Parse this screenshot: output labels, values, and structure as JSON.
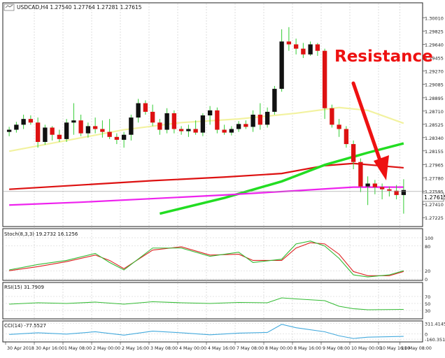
{
  "chart_data": {
    "type": "candlestick",
    "title": "USDCAD,H4 1.27540 1.27764 1.27281 1.27615",
    "annotation": "Resistance",
    "current_price_label": "1.27615",
    "main": {
      "ylim": [
        1.2712,
        1.302
      ],
      "yticks": [
        "1.30010",
        "1.29825",
        "1.29640",
        "1.29455",
        "1.29270",
        "1.29085",
        "1.28895",
        "1.28710",
        "1.28525",
        "1.28340",
        "1.28155",
        "1.27965",
        "1.27780",
        "1.27595",
        "1.27410",
        "1.27225"
      ],
      "ytick_values": [
        1.3001,
        1.29825,
        1.2964,
        1.29455,
        1.2927,
        1.29085,
        1.28895,
        1.2871,
        1.28525,
        1.2834,
        1.28155,
        1.27965,
        1.2778,
        1.27595,
        1.2741,
        1.27225
      ],
      "candles": [
        [
          1.2842,
          1.2849,
          1.2836,
          1.2845
        ],
        [
          1.2845,
          1.2856,
          1.2841,
          1.2852
        ],
        [
          1.2852,
          1.2866,
          1.2846,
          1.286
        ],
        [
          1.286,
          1.2865,
          1.2852,
          1.2855
        ],
        [
          1.2855,
          1.2862,
          1.282,
          1.2828
        ],
        [
          1.2828,
          1.2852,
          1.2824,
          1.2848
        ],
        [
          1.2848,
          1.285,
          1.283,
          1.2838
        ],
        [
          1.2838,
          1.2845,
          1.2828,
          1.2832
        ],
        [
          1.2832,
          1.286,
          1.2828,
          1.2855
        ],
        [
          1.2855,
          1.2882,
          1.2838,
          1.2858
        ],
        [
          1.2858,
          1.2866,
          1.2836,
          1.284
        ],
        [
          1.284,
          1.2855,
          1.2834,
          1.285
        ],
        [
          1.285,
          1.2862,
          1.284,
          1.2846
        ],
        [
          1.2846,
          1.2858,
          1.2834,
          1.2842
        ],
        [
          1.2842,
          1.286,
          1.2832,
          1.2835
        ],
        [
          1.2835,
          1.284,
          1.2825,
          1.2831
        ],
        [
          1.2831,
          1.2842,
          1.282,
          1.2838
        ],
        [
          1.2838,
          1.2866,
          1.283,
          1.2862
        ],
        [
          1.2862,
          1.2888,
          1.2855,
          1.2882
        ],
        [
          1.2882,
          1.2886,
          1.2866,
          1.287
        ],
        [
          1.287,
          1.288,
          1.285,
          1.2855
        ],
        [
          1.2855,
          1.286,
          1.2838,
          1.2845
        ],
        [
          1.2845,
          1.2875,
          1.284,
          1.2868
        ],
        [
          1.2868,
          1.2872,
          1.284,
          1.2846
        ],
        [
          1.2846,
          1.285,
          1.2838,
          1.2843
        ],
        [
          1.2843,
          1.2852,
          1.2835,
          1.2846
        ],
        [
          1.2846,
          1.2858,
          1.2838,
          1.2841
        ],
        [
          1.2841,
          1.2868,
          1.2836,
          1.2865
        ],
        [
          1.2865,
          1.2878,
          1.2852,
          1.2872
        ],
        [
          1.2872,
          1.2876,
          1.284,
          1.2845
        ],
        [
          1.2845,
          1.2852,
          1.2838,
          1.2841
        ],
        [
          1.2841,
          1.285,
          1.2837,
          1.2846
        ],
        [
          1.2846,
          1.2857,
          1.2842,
          1.2853
        ],
        [
          1.2853,
          1.2858,
          1.2846,
          1.2849
        ],
        [
          1.2849,
          1.2872,
          1.2842,
          1.2866
        ],
        [
          1.2866,
          1.2882,
          1.2845,
          1.2852
        ],
        [
          1.2852,
          1.2876,
          1.2848,
          1.287
        ],
        [
          1.287,
          1.2906,
          1.2866,
          1.2902
        ],
        [
          1.2902,
          1.2985,
          1.2898,
          1.2968
        ],
        [
          1.2968,
          1.2988,
          1.2955,
          1.2964
        ],
        [
          1.2964,
          1.2972,
          1.295,
          1.2958
        ],
        [
          1.2958,
          1.2966,
          1.2945,
          1.295
        ],
        [
          1.295,
          1.2968,
          1.2948,
          1.2964
        ],
        [
          1.2964,
          1.2966,
          1.2948,
          1.2955
        ],
        [
          1.2955,
          1.2958,
          1.286,
          1.2875
        ],
        [
          1.2875,
          1.288,
          1.2848,
          1.2852
        ],
        [
          1.2852,
          1.286,
          1.2835,
          1.2846
        ],
        [
          1.2846,
          1.285,
          1.282,
          1.2825
        ],
        [
          1.2825,
          1.283,
          1.279,
          1.28
        ],
        [
          1.28,
          1.2805,
          1.2758,
          1.2766
        ],
        [
          1.2766,
          1.278,
          1.274,
          1.277
        ],
        [
          1.277,
          1.2775,
          1.2755,
          1.2765
        ],
        [
          1.2765,
          1.277,
          1.2748,
          1.2762
        ],
        [
          1.2762,
          1.2766,
          1.2752,
          1.276
        ],
        [
          1.276,
          1.2768,
          1.2748,
          1.2754
        ],
        [
          1.2754,
          1.2776,
          1.2728,
          1.2761
        ]
      ],
      "moving_averages": [
        {
          "color": "#f2f2a0",
          "start": 1.2815,
          "end": 1.2854,
          "points": [
            [
              0,
              1.2815
            ],
            [
              8,
              1.283
            ],
            [
              16,
              1.2845
            ],
            [
              24,
              1.2855
            ],
            [
              32,
              1.286
            ],
            [
              40,
              1.2868
            ],
            [
              46,
              1.2876
            ],
            [
              50,
              1.2872
            ],
            [
              55,
              1.2854
            ]
          ]
        },
        {
          "color": "#dd1111",
          "start": 1.2762,
          "end": 1.2792,
          "points": [
            [
              0,
              1.2762
            ],
            [
              10,
              1.2768
            ],
            [
              20,
              1.2774
            ],
            [
              30,
              1.2779
            ],
            [
              38,
              1.2784
            ],
            [
              44,
              1.2795
            ],
            [
              48,
              1.2798
            ],
            [
              55,
              1.2792
            ]
          ]
        },
        {
          "color": "#22dd22",
          "start": 1.2728,
          "end": 1.2826,
          "points": [
            [
              21,
              1.2728
            ],
            [
              30,
              1.275
            ],
            [
              38,
              1.2773
            ],
            [
              44,
              1.2796
            ],
            [
              50,
              1.2813
            ],
            [
              55,
              1.2826
            ]
          ]
        },
        {
          "color": "#ee22ee",
          "start": 1.274,
          "end": 1.2765,
          "points": [
            [
              0,
              1.274
            ],
            [
              10,
              1.2744
            ],
            [
              20,
              1.2749
            ],
            [
              30,
              1.2754
            ],
            [
              40,
              1.276
            ],
            [
              48,
              1.2765
            ],
            [
              55,
              1.2765
            ]
          ]
        }
      ],
      "hline": 1.2759
    },
    "stoch": {
      "label": "Stoch(8,3,3) 19.2732 16.1256",
      "yticks": [
        "100",
        "80",
        "20",
        "0"
      ],
      "ytick_values": [
        100,
        80,
        20,
        0
      ],
      "main_line": [
        [
          0,
          22
        ],
        [
          4,
          35
        ],
        [
          8,
          45
        ],
        [
          12,
          62
        ],
        [
          14,
          40
        ],
        [
          16,
          22
        ],
        [
          20,
          75
        ],
        [
          24,
          75
        ],
        [
          28,
          55
        ],
        [
          32,
          65
        ],
        [
          34,
          40
        ],
        [
          38,
          48
        ],
        [
          40,
          85
        ],
        [
          42,
          92
        ],
        [
          44,
          80
        ],
        [
          46,
          50
        ],
        [
          48,
          10
        ],
        [
          50,
          5
        ],
        [
          53,
          10
        ],
        [
          55,
          20
        ]
      ],
      "signal_line": [
        [
          0,
          20
        ],
        [
          4,
          30
        ],
        [
          8,
          42
        ],
        [
          12,
          58
        ],
        [
          14,
          45
        ],
        [
          16,
          25
        ],
        [
          20,
          70
        ],
        [
          24,
          78
        ],
        [
          28,
          58
        ],
        [
          32,
          60
        ],
        [
          34,
          45
        ],
        [
          38,
          45
        ],
        [
          40,
          75
        ],
        [
          42,
          88
        ],
        [
          44,
          85
        ],
        [
          46,
          60
        ],
        [
          48,
          18
        ],
        [
          50,
          8
        ],
        [
          53,
          8
        ],
        [
          55,
          18
        ]
      ]
    },
    "rsi": {
      "label": "RSI(15) 31.7909",
      "yticks": [
        "70",
        "50",
        "30"
      ],
      "ytick_values": [
        70,
        50,
        30
      ],
      "line": [
        [
          0,
          48
        ],
        [
          4,
          52
        ],
        [
          8,
          50
        ],
        [
          12,
          54
        ],
        [
          16,
          48
        ],
        [
          20,
          55
        ],
        [
          24,
          52
        ],
        [
          28,
          50
        ],
        [
          32,
          53
        ],
        [
          36,
          52
        ],
        [
          38,
          66
        ],
        [
          40,
          63
        ],
        [
          44,
          58
        ],
        [
          46,
          42
        ],
        [
          48,
          35
        ],
        [
          50,
          32
        ],
        [
          55,
          33
        ]
      ]
    },
    "cci": {
      "label": "CCI(14) -77.5527",
      "yticks": [
        "311.4145",
        "0",
        "-160.3513"
      ],
      "ytick_values": [
        311.4145,
        0,
        -160.3513
      ],
      "line": [
        [
          0,
          -20
        ],
        [
          4,
          30
        ],
        [
          8,
          -10
        ],
        [
          12,
          60
        ],
        [
          16,
          -40
        ],
        [
          20,
          80
        ],
        [
          24,
          30
        ],
        [
          28,
          -30
        ],
        [
          32,
          20
        ],
        [
          36,
          40
        ],
        [
          38,
          280
        ],
        [
          40,
          180
        ],
        [
          44,
          60
        ],
        [
          46,
          -60
        ],
        [
          48,
          -140
        ],
        [
          50,
          -100
        ],
        [
          55,
          -77.5527
        ]
      ]
    },
    "x_ticks": [
      "30 Apr 2018",
      "30 Apr 16:00",
      "1 May 08:00",
      "2 May 00:00",
      "2 May 16:00",
      "3 May 08:00",
      "4 May 00:00",
      "4 May 16:00",
      "7 May 08:00",
      "8 May 00:00",
      "8 May 16:00",
      "9 May 08:00",
      "10 May 00:00",
      "10 May 16:00",
      "11 May 08:00"
    ],
    "x_tick_candle_index": [
      0,
      4,
      8,
      12,
      16,
      20,
      24,
      28,
      32,
      36,
      40,
      44,
      48,
      52,
      55
    ],
    "colors": {
      "bull_candle": "#111111",
      "bear_candle": "#dd1111",
      "wick": "#33cc33",
      "indicator_main": "#33bb33",
      "indicator_signal": "#dd2222",
      "cci_line": "#44aadd",
      "annotation": "#ee1111",
      "background": "#ffffff"
    }
  }
}
